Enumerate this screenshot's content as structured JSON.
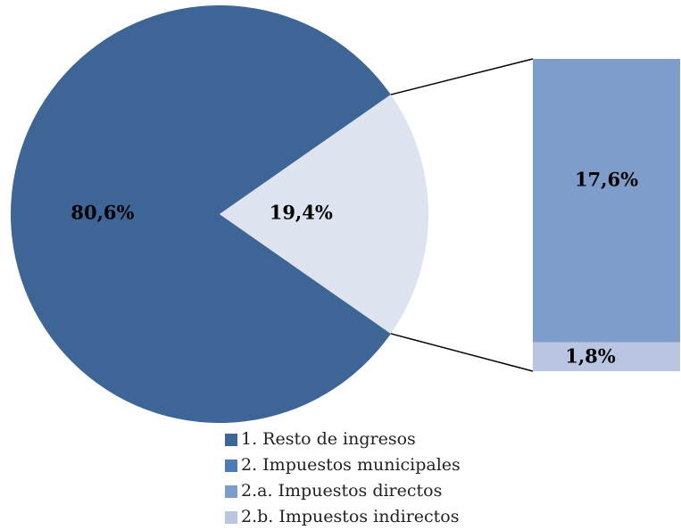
{
  "chart_data": {
    "type": "pie-of-bar",
    "pie": {
      "categories": [
        "1. Resto de ingresos",
        "2. Impuestos municipales"
      ],
      "values": [
        80.6,
        19.4
      ],
      "value_labels": [
        "80,6%",
        "19,4%"
      ],
      "colors": [
        "#3d6595",
        "#dde3ef"
      ],
      "legend_colors": [
        "#3d6595",
        "#4f7ab8"
      ]
    },
    "bar": {
      "categories": [
        "2.a. Impuestos directos",
        "2.b. Impuestos indirectos"
      ],
      "values": [
        17.6,
        1.8
      ],
      "value_labels": [
        "17,6%",
        "1,8%"
      ],
      "colors": [
        "#7f9dca",
        "#b9c5e1"
      ]
    }
  }
}
